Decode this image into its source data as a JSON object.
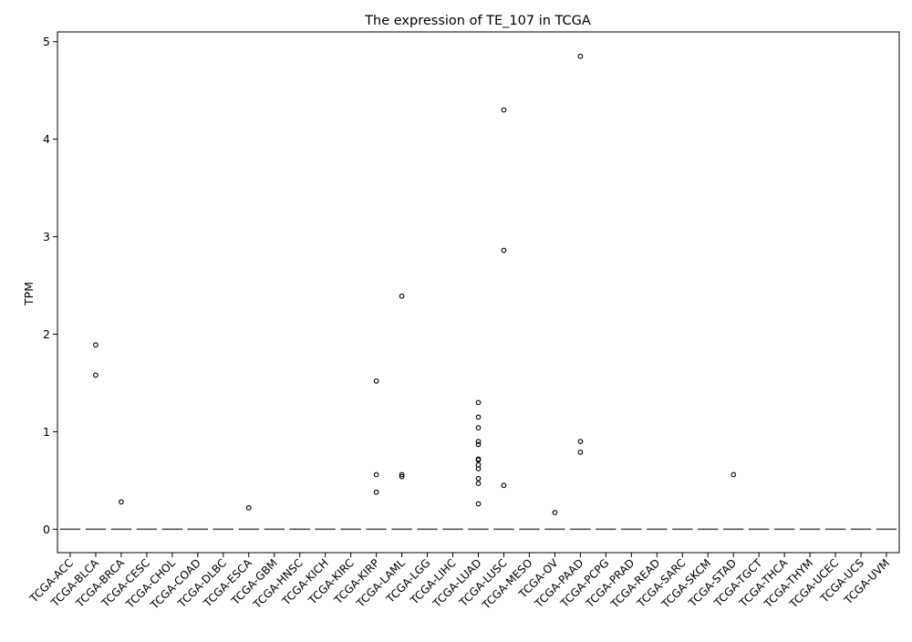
{
  "chart_data": {
    "type": "box",
    "title": "The expression of TE_107 in TCGA",
    "xlabel": "",
    "ylabel": "TPM",
    "ylim": [
      -0.24,
      5.1
    ],
    "yticks": [
      0,
      1,
      2,
      3,
      4,
      5
    ],
    "ytick_labels": [
      "0",
      "1",
      "2",
      "3",
      "4",
      "5"
    ],
    "grid": false,
    "categories": [
      "TCGA-ACC",
      "TCGA-BLCA",
      "TCGA-BRCA",
      "TCGA-CESC",
      "TCGA-CHOL",
      "TCGA-COAD",
      "TCGA-DLBC",
      "TCGA-ESCA",
      "TCGA-GBM",
      "TCGA-HNSC",
      "TCGA-KICH",
      "TCGA-KIRC",
      "TCGA-KIRP",
      "TCGA-LAML",
      "TCGA-LGG",
      "TCGA-LIHC",
      "TCGA-LUAD",
      "TCGA-LUSC",
      "TCGA-MESO",
      "TCGA-OV",
      "TCGA-PAAD",
      "TCGA-PCPG",
      "TCGA-PRAD",
      "TCGA-READ",
      "TCGA-SARC",
      "TCGA-SKCM",
      "TCGA-STAD",
      "TCGA-TGCT",
      "TCGA-THCA",
      "TCGA-THYM",
      "TCGA-UCEC",
      "TCGA-UCS",
      "TCGA-UVM"
    ],
    "medians": [
      0,
      0,
      0,
      0,
      0,
      0,
      0,
      0,
      0,
      0,
      0,
      0,
      0,
      0,
      0,
      0,
      0,
      0,
      0,
      0,
      0,
      0,
      0,
      0,
      0,
      0,
      0,
      0,
      0,
      0,
      0,
      0,
      0
    ],
    "outliers": [
      [],
      [
        1.89,
        1.58
      ],
      [
        0.28
      ],
      [],
      [],
      [],
      [],
      [
        0.22
      ],
      [],
      [],
      [],
      [],
      [
        1.52,
        0.56,
        0.38
      ],
      [
        2.39,
        0.56,
        0.54
      ],
      [],
      [],
      [
        1.3,
        1.15,
        1.04,
        0.9,
        0.87,
        0.72,
        0.71,
        0.66,
        0.62,
        0.52,
        0.47,
        0.26
      ],
      [
        4.3,
        2.86,
        0.45
      ],
      [],
      [
        0.17
      ],
      [
        4.85,
        0.9,
        0.79
      ],
      [],
      [],
      [],
      [],
      [],
      [
        0.56
      ],
      [],
      [],
      [],
      [],
      [],
      []
    ],
    "colors": {
      "median_line": "#555555",
      "outlier_edge": "#000000",
      "axis": "#000000"
    }
  }
}
